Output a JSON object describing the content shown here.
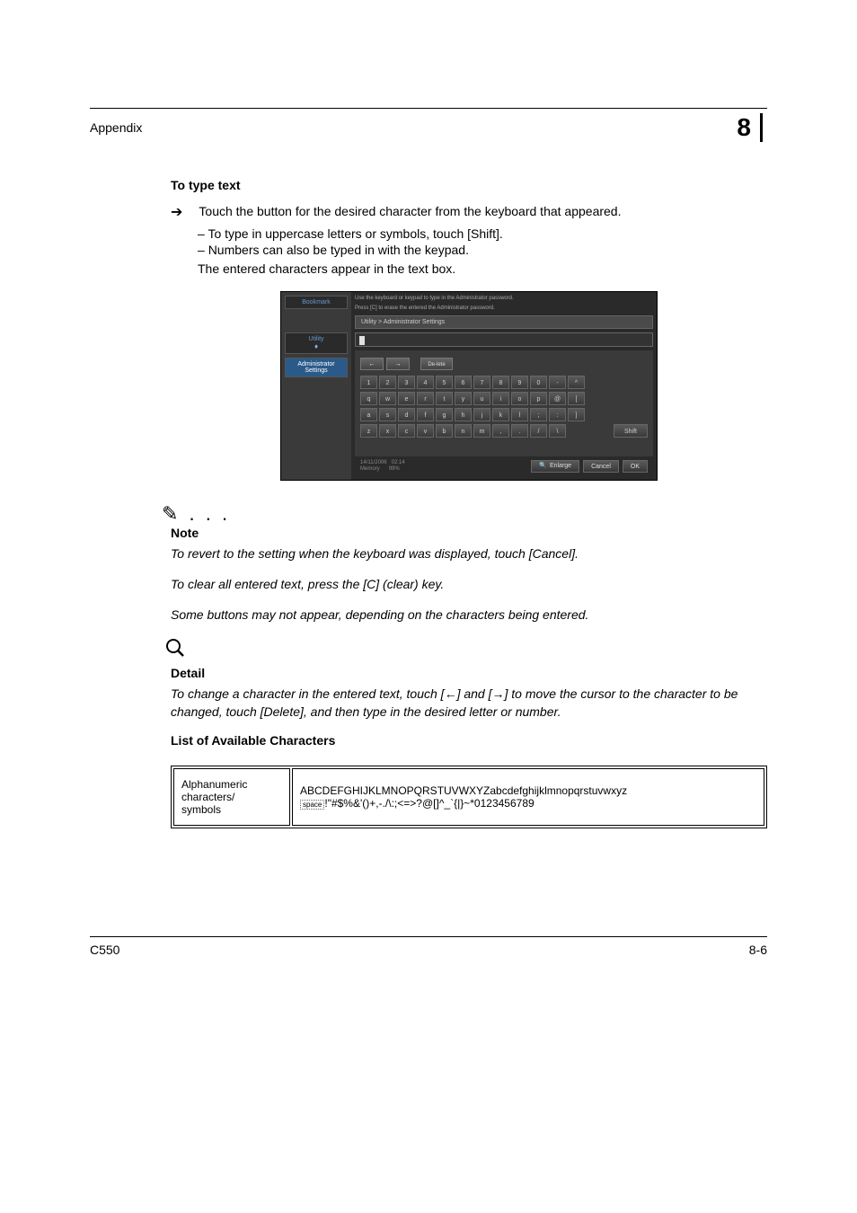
{
  "header": {
    "section": "Appendix",
    "chapter": "8"
  },
  "section1": {
    "title": "To type text",
    "bullet_main": "Touch the button for the desired character from the keyboard that appeared.",
    "sub1": "To type in uppercase letters or symbols, touch [Shift].",
    "sub2": "Numbers can also be typed in with the keypad.",
    "closing": "The entered characters appear in the text box."
  },
  "screenshot": {
    "sidebar": {
      "bookmark": "Bookmark",
      "utility": "Utility",
      "admin": "Administrator Settings"
    },
    "instr1": "Use the keyboard or keypad to type in the Administrator password.",
    "instr2": "Press [C] to erase the entered the Administrator password.",
    "breadcrumb": "Utility > Administrator Settings",
    "delete": "De-lete",
    "row1": [
      "1",
      "2",
      "3",
      "4",
      "5",
      "6",
      "7",
      "8",
      "9",
      "0",
      "-",
      "^"
    ],
    "row2": [
      "q",
      "w",
      "e",
      "r",
      "t",
      "y",
      "u",
      "i",
      "o",
      "p",
      "@",
      "["
    ],
    "row3": [
      "a",
      "s",
      "d",
      "f",
      "g",
      "h",
      "j",
      "k",
      "l",
      ";",
      ":",
      "]"
    ],
    "row4": [
      "z",
      "x",
      "c",
      "v",
      "b",
      "n",
      "m",
      ",",
      ".",
      "/",
      "\\"
    ],
    "shift": "Shift",
    "footer_date": "14/11/2006",
    "footer_time": "02:14",
    "footer_mem": "Memory",
    "footer_pct": "99%",
    "enlarge": "Enlarge",
    "cancel": "Cancel",
    "ok": "OK"
  },
  "note": {
    "label": "Note",
    "n1": "To revert to the setting when the keyboard was displayed, touch [Cancel].",
    "n2": "To clear all entered text, press the [C] (clear) key.",
    "n3": "Some buttons may not appear, depending on the characters being entered."
  },
  "detail": {
    "label": "Detail",
    "text_a": "To change a character in the entered text, touch [",
    "text_b": "] and [",
    "text_c": "] to move the cursor to the character to be changed, touch [Delete], and then type in the desired letter or number."
  },
  "section2": {
    "title": "List of Available Characters"
  },
  "table": {
    "left": "Alphanumeric characters/\nsymbols",
    "space": "space",
    "chars1": "ABCDEFGHIJKLMNOPQRSTUVWXYZabcdefghijklmnopqrstuvwxyz",
    "chars2": "!\"#$%&'()+,-./\\:;<=>?@[]^_`{|}~*0123456789"
  },
  "footer": {
    "model": "C550",
    "page": "8-6"
  }
}
